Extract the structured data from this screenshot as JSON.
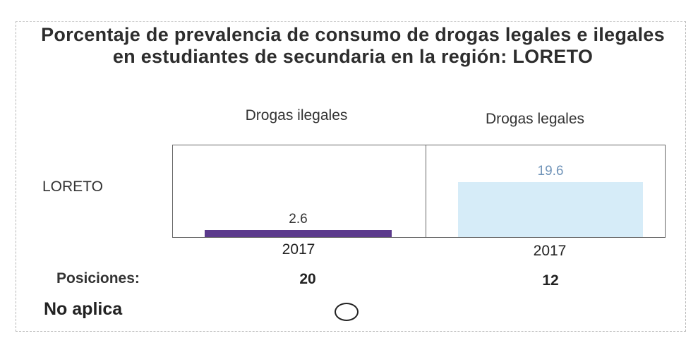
{
  "chart_data": {
    "type": "bar",
    "title": "Porcentaje de prevalencia de consumo de drogas legales e ilegales en estudiantes de secundaria en la región: LORETO",
    "row_label": "LORETO",
    "ylim": [
      0,
      25
    ],
    "panels": [
      {
        "name": "Drogas ilegales",
        "category": "2017",
        "value": 2.6,
        "value_label": "2.6",
        "color": "#5b3a8c",
        "label_color": "#333333",
        "position": "20"
      },
      {
        "name": "Drogas legales",
        "category": "2017",
        "value": 19.6,
        "value_label": "19.6",
        "color": "#d6ecf8",
        "label_color": "#6f93b8",
        "position": "12"
      }
    ]
  },
  "positions_label": "Posiciones:",
  "not_applicable_label": "No aplica"
}
